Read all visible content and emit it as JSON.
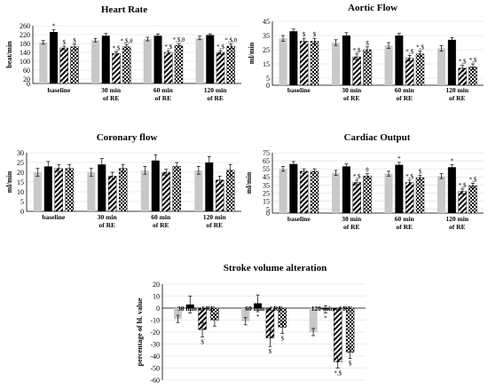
{
  "chart_data": [
    {
      "type": "bar",
      "title": "Heart Rate",
      "ylabel": "beat/min",
      "ylim": [
        0,
        260
      ],
      "yticks": [
        0,
        20,
        60,
        100,
        140,
        180,
        220,
        260
      ],
      "categories": [
        "baseline",
        "30 min of RE",
        "60 min of RE",
        "120 min of RE"
      ],
      "series": [
        {
          "values": [
            185,
            195,
            200,
            205
          ],
          "errors": [
            8,
            8,
            8,
            8
          ]
        },
        {
          "values": [
            232,
            215,
            215,
            218
          ],
          "errors": [
            10,
            10,
            8,
            6
          ]
        },
        {
          "values": [
            160,
            135,
            140,
            140
          ],
          "errors": [
            8,
            8,
            8,
            8
          ]
        },
        {
          "values": [
            165,
            165,
            172,
            168
          ],
          "errors": [
            12,
            10,
            8,
            10
          ]
        }
      ],
      "annotations": [
        {
          "category": 0,
          "series": 1,
          "text": "*"
        },
        {
          "category": 0,
          "series": 2,
          "text": "$"
        },
        {
          "category": 0,
          "series": 3,
          "text": "$"
        },
        {
          "category": 1,
          "series": 2,
          "text": "*,$"
        },
        {
          "category": 1,
          "series": 3,
          "text": "*,$,θ"
        },
        {
          "category": 2,
          "series": 2,
          "text": "*,$"
        },
        {
          "category": 2,
          "series": 3,
          "text": "*,$,θ"
        },
        {
          "category": 3,
          "series": 2,
          "text": "*,$"
        },
        {
          "category": 3,
          "series": 3,
          "text": "*,$,θ"
        }
      ]
    },
    {
      "type": "bar",
      "title": "Aortic Flow",
      "ylabel": "ml/min",
      "ylim": [
        0,
        45
      ],
      "yticks": [
        0,
        5,
        15,
        25,
        35,
        45
      ],
      "categories": [
        "baseline",
        "30 min of RE",
        "60 min of RE",
        "120 min of RE"
      ],
      "series": [
        {
          "values": [
            33,
            30,
            28,
            26
          ],
          "errors": [
            2,
            2,
            2,
            2
          ]
        },
        {
          "values": [
            38,
            35,
            35,
            32
          ],
          "errors": [
            1.5,
            2,
            1.5,
            1.5
          ]
        },
        {
          "values": [
            31,
            20,
            19,
            12
          ],
          "errors": [
            2,
            2,
            2,
            2
          ]
        },
        {
          "values": [
            31,
            25,
            22,
            13
          ],
          "errors": [
            2,
            2,
            2,
            2
          ]
        }
      ],
      "annotations": [
        {
          "category": 0,
          "series": 2,
          "text": "$"
        },
        {
          "category": 0,
          "series": 3,
          "text": "$"
        },
        {
          "category": 1,
          "series": 2,
          "text": "*,$"
        },
        {
          "category": 1,
          "series": 3,
          "text": "$"
        },
        {
          "category": 2,
          "series": 2,
          "text": "*,$"
        },
        {
          "category": 2,
          "series": 3,
          "text": "*,$"
        },
        {
          "category": 3,
          "series": 2,
          "text": "*,$"
        },
        {
          "category": 3,
          "series": 3,
          "text": "*,$"
        }
      ]
    },
    {
      "type": "bar",
      "title": "Coronary flow",
      "ylabel": "ml/min",
      "ylim": [
        0,
        30
      ],
      "yticks": [
        0,
        5,
        10,
        15,
        20,
        25,
        30
      ],
      "categories": [
        "baseline",
        "30 min of RE",
        "60 min of RE",
        "120 min of RE"
      ],
      "series": [
        {
          "values": [
            20,
            20,
            21,
            21
          ],
          "errors": [
            2,
            2,
            2,
            2
          ]
        },
        {
          "values": [
            23,
            24,
            26,
            25
          ],
          "errors": [
            2.5,
            3,
            3,
            3
          ]
        },
        {
          "values": [
            22,
            18,
            20,
            16
          ],
          "errors": [
            2,
            2,
            1.5,
            2
          ]
        },
        {
          "values": [
            22,
            22,
            23,
            21
          ],
          "errors": [
            2,
            2,
            2,
            3
          ]
        }
      ],
      "annotations": []
    },
    {
      "type": "bar",
      "title": "Cardiac Output",
      "ylabel": "ml/min",
      "ylim": [
        0,
        75
      ],
      "yticks": [
        0,
        5,
        15,
        25,
        35,
        45,
        55,
        65,
        75
      ],
      "categories": [
        "baseline",
        "30 min of RE",
        "60 min of RE",
        "120 min of RE"
      ],
      "series": [
        {
          "values": [
            55,
            50,
            49,
            46
          ],
          "errors": [
            3,
            3,
            3,
            3
          ]
        },
        {
          "values": [
            61,
            58,
            60,
            57
          ],
          "errors": [
            3,
            3,
            3,
            3
          ]
        },
        {
          "values": [
            52,
            38,
            38,
            27
          ],
          "errors": [
            3,
            3,
            3,
            3
          ]
        },
        {
          "values": [
            52,
            46,
            44,
            34
          ],
          "errors": [
            3,
            3,
            3,
            3
          ]
        }
      ],
      "annotations": [
        {
          "category": 1,
          "series": 2,
          "text": "*,$"
        },
        {
          "category": 1,
          "series": 3,
          "text": "θ"
        },
        {
          "category": 2,
          "series": 1,
          "text": "*"
        },
        {
          "category": 2,
          "series": 2,
          "text": "*,$"
        },
        {
          "category": 2,
          "series": 3,
          "text": "$"
        },
        {
          "category": 3,
          "series": 1,
          "text": "*"
        },
        {
          "category": 3,
          "series": 2,
          "text": "*,$"
        },
        {
          "category": 3,
          "series": 3,
          "text": "*,$"
        }
      ]
    },
    {
      "type": "bar",
      "title": "Stroke volume alteration",
      "ylabel": "percentage of bl. value",
      "ylim": [
        -60,
        20
      ],
      "yticks": [
        -60,
        -50,
        -40,
        -30,
        -20,
        -10,
        0,
        10,
        20
      ],
      "categories": [
        "30 min of RE",
        "60 min of RE",
        "120 min of RE"
      ],
      "series": [
        {
          "values": [
            -9,
            -11,
            -20
          ],
          "errors": [
            3,
            3,
            3
          ]
        },
        {
          "values": [
            3,
            4,
            -1
          ],
          "errors": [
            7,
            7,
            3
          ]
        },
        {
          "values": [
            -18,
            -25,
            -45
          ],
          "errors": [
            6,
            7,
            5
          ]
        },
        {
          "values": [
            -10,
            -16,
            -37
          ],
          "errors": [
            5,
            5,
            5
          ]
        }
      ],
      "annotations": [
        {
          "category": 0,
          "series": 2,
          "text": "$",
          "below": true
        },
        {
          "category": 1,
          "series": 1,
          "text": "*",
          "below": true
        },
        {
          "category": 1,
          "series": 2,
          "text": "$",
          "below": true
        },
        {
          "category": 1,
          "series": 3,
          "text": "$",
          "below": true
        },
        {
          "category": 2,
          "series": 1,
          "text": "*",
          "below": true
        },
        {
          "category": 2,
          "series": 2,
          "text": "*,$",
          "below": true
        },
        {
          "category": 2,
          "series": 3,
          "text": "$",
          "below": true
        }
      ]
    }
  ],
  "colors": {
    "series0": "#c8c8c8",
    "series1": "#000000",
    "axis": "#000000",
    "grid": "#d9d9d9"
  }
}
